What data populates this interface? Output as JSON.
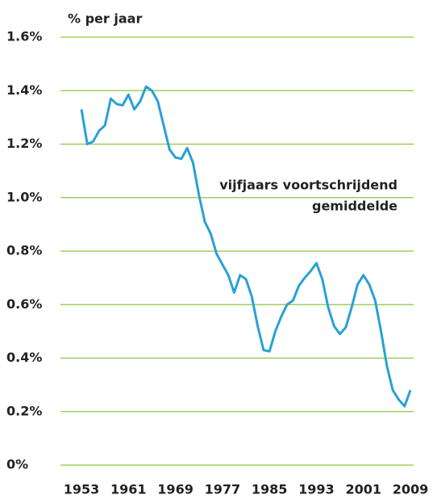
{
  "chart_data": {
    "type": "line",
    "y_label": "% per jaar",
    "annotation": [
      "vijfjaars voortschrijdend",
      "gemiddelde"
    ],
    "x": [
      1953,
      1954,
      1955,
      1956,
      1957,
      1958,
      1959,
      1960,
      1961,
      1962,
      1963,
      1964,
      1965,
      1966,
      1967,
      1968,
      1969,
      1970,
      1971,
      1972,
      1973,
      1974,
      1975,
      1976,
      1977,
      1978,
      1979,
      1980,
      1981,
      1982,
      1983,
      1984,
      1985,
      1986,
      1987,
      1988,
      1989,
      1990,
      1991,
      1992,
      1993,
      1994,
      1995,
      1996,
      1997,
      1998,
      1999,
      2000,
      2001,
      2002,
      2003,
      2004,
      2005,
      2006,
      2007,
      2008,
      2009
    ],
    "series": [
      {
        "color": "#2aa0d6",
        "values": [
          1.33,
          1.2,
          1.21,
          1.25,
          1.27,
          1.37,
          1.35,
          1.345,
          1.385,
          1.33,
          1.36,
          1.415,
          1.4,
          1.36,
          1.27,
          1.18,
          1.15,
          1.145,
          1.185,
          1.13,
          1.01,
          0.91,
          0.865,
          0.79,
          0.75,
          0.71,
          0.645,
          0.71,
          0.695,
          0.63,
          0.52,
          0.43,
          0.425,
          0.5,
          0.555,
          0.6,
          0.615,
          0.67,
          0.7,
          0.725,
          0.755,
          0.695,
          0.59,
          0.52,
          0.49,
          0.515,
          0.59,
          0.675,
          0.71,
          0.675,
          0.615,
          0.5,
          0.37,
          0.28,
          0.245,
          0.22,
          0.28
        ]
      }
    ],
    "xlim": [
      1953,
      2009
    ],
    "xticks": [
      1953,
      1961,
      1969,
      1977,
      1985,
      1993,
      2001,
      2009
    ],
    "ylim": [
      0,
      1.6
    ],
    "yticks": [
      {
        "value": 0,
        "label": "0%"
      },
      {
        "value": 0.2,
        "label": "0.2%"
      },
      {
        "value": 0.4,
        "label": "0.4%"
      },
      {
        "value": 0.6,
        "label": "0.6%"
      },
      {
        "value": 0.8,
        "label": "0.8%"
      },
      {
        "value": 1.0,
        "label": "1.0%"
      },
      {
        "value": 1.2,
        "label": "1.2%"
      },
      {
        "value": 1.4,
        "label": "1.4%"
      },
      {
        "value": 1.6,
        "label": "1.6%"
      }
    ],
    "grid": true,
    "grid_color": "#8dc63f"
  }
}
